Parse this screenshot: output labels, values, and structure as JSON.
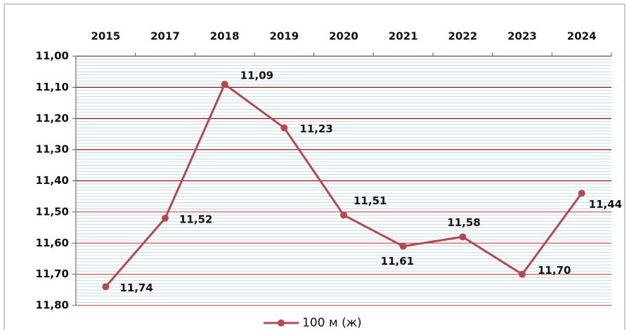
{
  "chart_data": {
    "type": "line",
    "categories": [
      "2015",
      "2017",
      "2018",
      "2019",
      "2020",
      "2021",
      "2022",
      "2023",
      "2024"
    ],
    "series": [
      {
        "name": "100 м (ж)",
        "color": "#b24a4e",
        "values": [
          11.74,
          11.52,
          11.09,
          11.23,
          11.51,
          11.61,
          11.58,
          11.7,
          11.44
        ],
        "value_labels": [
          "11,74",
          "11,52",
          "11,09",
          "11,23",
          "11,51",
          "11,61",
          "11,58",
          "11,70",
          "11,44"
        ]
      }
    ],
    "ylim": [
      11.0,
      11.8
    ],
    "y_inverted": true,
    "yticks": [
      {
        "value": 11.0,
        "label": "11,00"
      },
      {
        "value": 11.1,
        "label": "11,10"
      },
      {
        "value": 11.2,
        "label": "11,20"
      },
      {
        "value": 11.3,
        "label": "11,30"
      },
      {
        "value": 11.4,
        "label": "11,40"
      },
      {
        "value": 11.5,
        "label": "11,50"
      },
      {
        "value": 11.6,
        "label": "11,60"
      },
      {
        "value": 11.7,
        "label": "11,70"
      },
      {
        "value": 11.8,
        "label": "11,80"
      }
    ],
    "grid": true,
    "legend": "bottom"
  }
}
